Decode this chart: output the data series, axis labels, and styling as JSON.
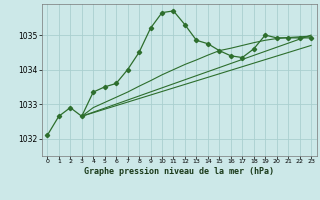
{
  "title": "Graphe pression niveau de la mer (hPa)",
  "background_color": "#cce8e8",
  "grid_color": "#aacfcf",
  "line_color": "#2d6e2d",
  "xlim": [
    -0.5,
    23.5
  ],
  "ylim": [
    1031.5,
    1035.9
  ],
  "yticks": [
    1032,
    1033,
    1034,
    1035
  ],
  "xticks": [
    0,
    1,
    2,
    3,
    4,
    5,
    6,
    7,
    8,
    9,
    10,
    11,
    12,
    13,
    14,
    15,
    16,
    17,
    18,
    19,
    20,
    21,
    22,
    23
  ],
  "series_main": {
    "x": [
      0,
      1,
      2,
      3,
      4,
      5,
      6,
      7,
      8,
      9,
      10,
      11,
      12,
      13,
      14,
      15,
      16,
      17,
      18,
      19,
      20,
      21,
      22,
      23
    ],
    "y": [
      1032.1,
      1032.65,
      1032.9,
      1032.65,
      1033.35,
      1033.5,
      1033.6,
      1034.0,
      1034.5,
      1035.2,
      1035.65,
      1035.7,
      1035.3,
      1034.85,
      1034.75,
      1034.55,
      1034.4,
      1034.35,
      1034.6,
      1035.0,
      1034.92,
      1034.92,
      1034.92,
      1034.92
    ]
  },
  "series_smooth": {
    "x": [
      3,
      4,
      5,
      6,
      7,
      8,
      9,
      10,
      11,
      12,
      13,
      14,
      15,
      16,
      17,
      18,
      19,
      20,
      21,
      22,
      23
    ],
    "y": [
      1032.65,
      1032.9,
      1033.05,
      1033.2,
      1033.35,
      1033.52,
      1033.68,
      1033.85,
      1034.0,
      1034.15,
      1034.28,
      1034.42,
      1034.55,
      1034.62,
      1034.7,
      1034.78,
      1034.85,
      1034.9,
      1034.93,
      1034.95,
      1034.97
    ]
  },
  "series_line1": {
    "x": [
      3,
      23
    ],
    "y": [
      1032.65,
      1035.0
    ]
  },
  "series_line2": {
    "x": [
      3,
      23
    ],
    "y": [
      1032.65,
      1034.7
    ]
  }
}
